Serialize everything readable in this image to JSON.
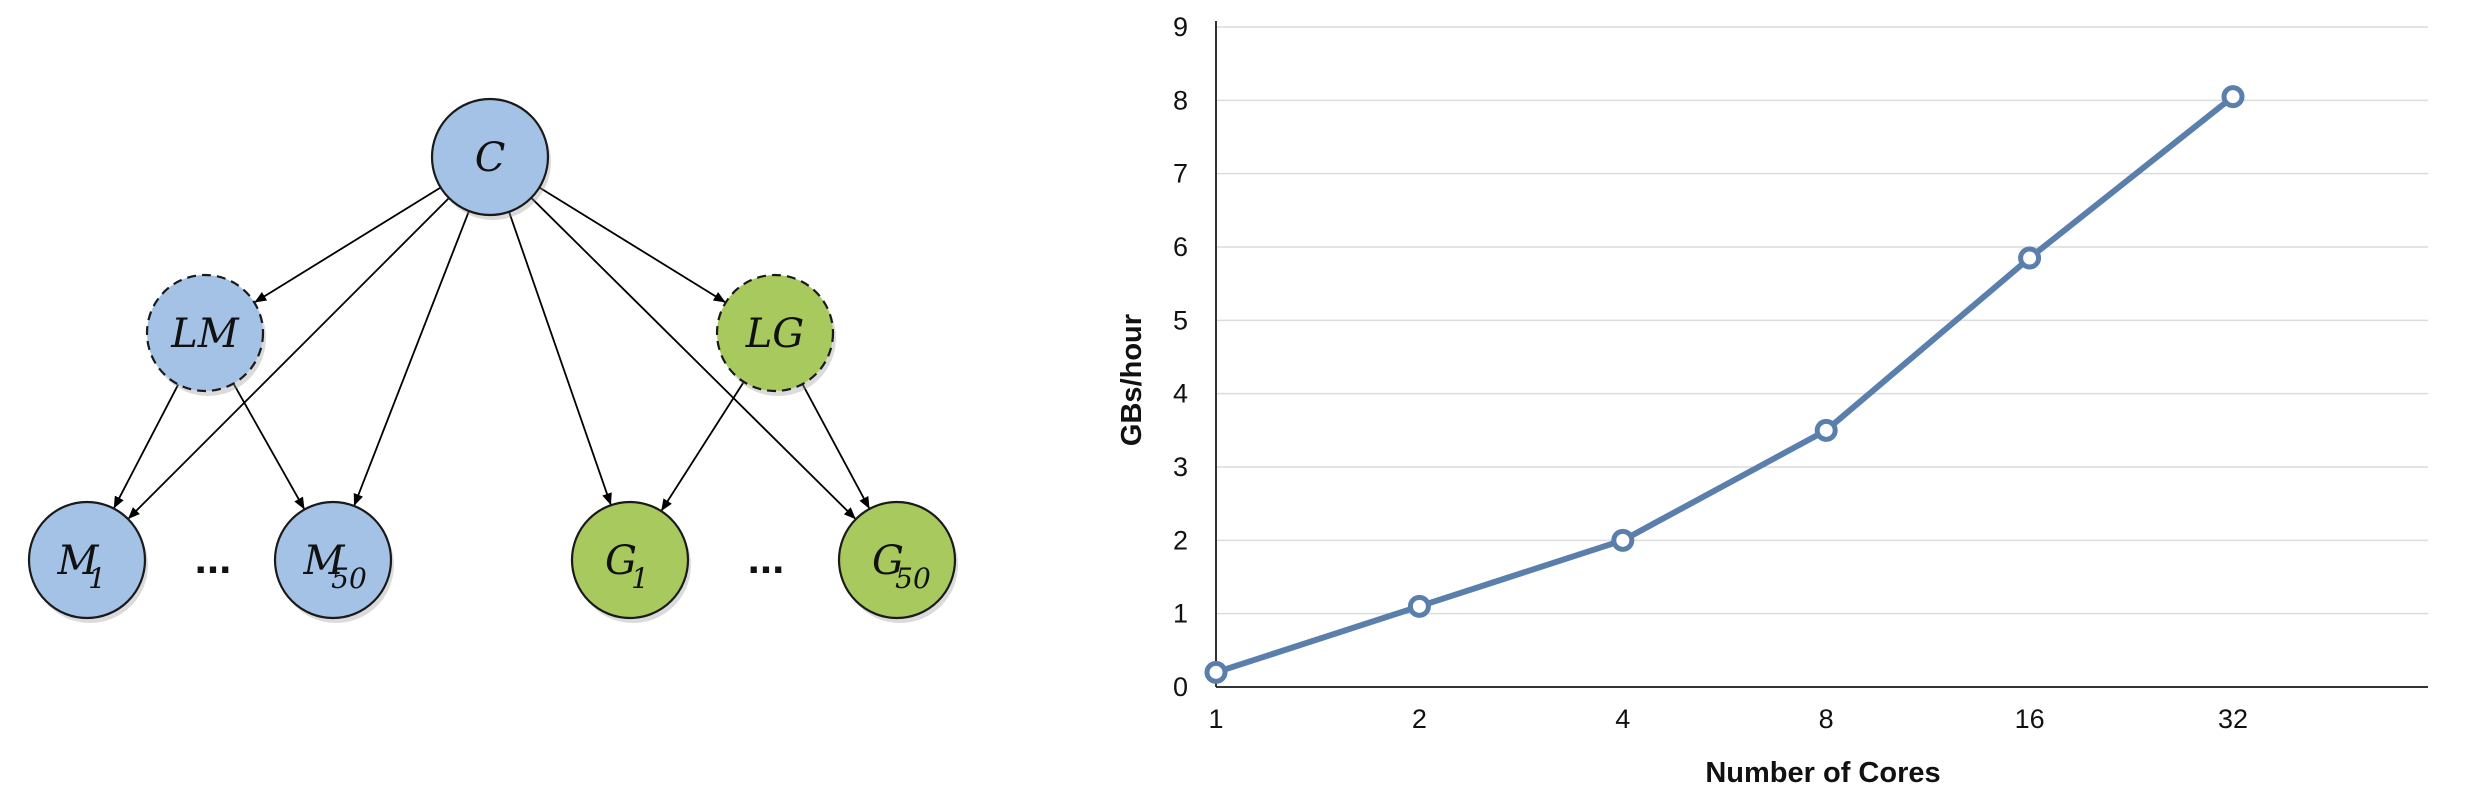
{
  "diagram": {
    "nodes": [
      {
        "id": "C",
        "label": "C",
        "sub": "",
        "fill": "#a4c2e6",
        "dashed": false
      },
      {
        "id": "LM",
        "label": "LM",
        "sub": "",
        "fill": "#a4c2e6",
        "dashed": true
      },
      {
        "id": "LG",
        "label": "LG",
        "sub": "",
        "fill": "#a8c95e",
        "dashed": true
      },
      {
        "id": "M1",
        "label": "M",
        "sub": "1",
        "fill": "#a4c2e6",
        "dashed": false
      },
      {
        "id": "M50",
        "label": "M",
        "sub": "50",
        "fill": "#a4c2e6",
        "dashed": false
      },
      {
        "id": "G1",
        "label": "G",
        "sub": "1",
        "fill": "#a8c95e",
        "dashed": false
      },
      {
        "id": "G50",
        "label": "G",
        "sub": "50",
        "fill": "#a8c95e",
        "dashed": false
      }
    ],
    "edges": [
      [
        "C",
        "LM"
      ],
      [
        "C",
        "LG"
      ],
      [
        "C",
        "M1"
      ],
      [
        "C",
        "M50"
      ],
      [
        "C",
        "G1"
      ],
      [
        "C",
        "G50"
      ],
      [
        "LM",
        "M1"
      ],
      [
        "LM",
        "M50"
      ],
      [
        "LG",
        "G1"
      ],
      [
        "LG",
        "G50"
      ]
    ],
    "ellipses": [
      "...",
      "..."
    ]
  },
  "chart_data": {
    "type": "line",
    "categories": [
      "1",
      "2",
      "4",
      "8",
      "16",
      "32"
    ],
    "series": [
      {
        "values": [
          0.2,
          1.1,
          2.0,
          3.5,
          5.85,
          8.05
        ],
        "color": "#5a7fad"
      }
    ],
    "xlabel": "Number of Cores",
    "ylabel": "GBs/hour",
    "ylim": [
      0,
      9
    ],
    "yticks": [
      "0",
      "1",
      "2",
      "3",
      "4",
      "5",
      "6",
      "7",
      "8",
      "9"
    ],
    "grid": true
  }
}
